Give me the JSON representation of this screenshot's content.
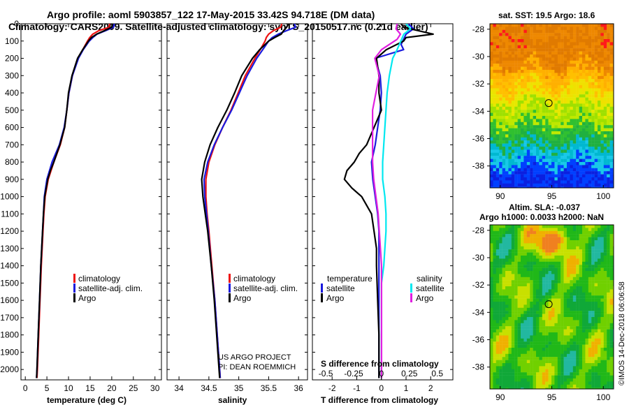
{
  "header": {
    "title_line1": "Argo profile: aoml 5903857_122 17-May-2015 33.42S 94.718E (DM data)",
    "title_line2": "Climatology: CARS2009. Satellite-adjusted climatology: synTS_20150517.nc (0.21d earlier)"
  },
  "credits": {
    "project": "US ARGO PROJECT",
    "pi": "PI: DEAN ROEMMICH",
    "imos": "©IMOS 14-Dec-2018 06:06:58"
  },
  "colors": {
    "climatology": "#ee1111",
    "satellite": "#1a1add",
    "argo": "#000000",
    "salinity_satellite": "#00e8f0",
    "salinity_argo": "#e020e0"
  },
  "chart_data": [
    {
      "id": "temperature",
      "type": "line",
      "xlabel": "temperature (deg C)",
      "xlim": [
        -1,
        31.5
      ],
      "xticks": [
        0,
        5,
        10,
        15,
        20,
        25,
        30
      ],
      "ylim": [
        2060,
        0
      ],
      "yticks": [
        0,
        100,
        200,
        300,
        400,
        500,
        600,
        700,
        800,
        900,
        1000,
        1100,
        1200,
        1300,
        1400,
        1500,
        1600,
        1700,
        1800,
        1900,
        2000
      ],
      "legend": [
        "climatology",
        "satellite-adj. clim.",
        "Argo"
      ],
      "series": [
        {
          "name": "climatology",
          "depth": [
            0,
            20,
            40,
            60,
            80,
            100,
            150,
            200,
            300,
            400,
            500,
            600,
            700,
            800,
            900,
            1000,
            1100,
            1200,
            1400,
            1600,
            1800,
            2000,
            2050
          ],
          "values": [
            19.5,
            19.4,
            17.0,
            15.6,
            14.9,
            14.4,
            13.3,
            12.2,
            10.9,
            10.1,
            9.6,
            9.1,
            8.1,
            6.6,
            5.3,
            4.6,
            4.3,
            4.1,
            3.7,
            3.4,
            3.1,
            2.8,
            2.7
          ]
        },
        {
          "name": "satellite-adj. clim.",
          "depth": [
            0,
            20,
            40,
            60,
            80,
            100,
            150,
            200,
            300,
            400,
            500,
            600,
            700,
            800,
            900,
            1000,
            1100,
            1200,
            1400,
            1600,
            1800,
            2000,
            2050
          ],
          "values": [
            20.6,
            20.4,
            18.6,
            16.6,
            15.6,
            14.8,
            13.4,
            12.3,
            10.9,
            10.1,
            9.6,
            9.0,
            7.9,
            6.2,
            5.0,
            4.4,
            4.2,
            4.0,
            3.6,
            3.3,
            3.0,
            2.7,
            2.6
          ]
        },
        {
          "name": "Argo",
          "depth": [
            0,
            20,
            40,
            60,
            80,
            100,
            150,
            200,
            300,
            400,
            500,
            600,
            700,
            800,
            850,
            900,
            1000,
            1100,
            1200,
            1400,
            1600,
            1800,
            2000,
            2050
          ],
          "values": [
            20.2,
            20.0,
            18.3,
            16.5,
            15.3,
            14.6,
            13.3,
            12.1,
            10.8,
            10.0,
            9.6,
            9.1,
            8.0,
            6.6,
            5.8,
            5.2,
            4.5,
            4.2,
            4.0,
            3.6,
            3.3,
            3.0,
            2.7,
            2.6
          ]
        }
      ]
    },
    {
      "id": "salinity",
      "type": "line",
      "xlabel": "salinity",
      "xlim": [
        33.8,
        36.15
      ],
      "xticks": [
        34,
        34.5,
        35,
        35.5,
        36
      ],
      "ylim": [
        2060,
        0
      ],
      "legend": [
        "climatology",
        "satellite-adj. clim.",
        "Argo"
      ],
      "series": [
        {
          "name": "climatology",
          "depth": [
            0,
            20,
            40,
            60,
            80,
            100,
            150,
            200,
            300,
            400,
            500,
            600,
            700,
            800,
            900,
            1000,
            1100,
            1200,
            1400,
            1600,
            1800,
            2000,
            2050
          ],
          "values": [
            35.72,
            35.7,
            35.58,
            35.5,
            35.46,
            35.44,
            35.36,
            35.27,
            35.11,
            34.99,
            34.87,
            34.73,
            34.6,
            34.5,
            34.45,
            34.45,
            34.47,
            34.5,
            34.55,
            34.6,
            34.64,
            34.68,
            34.69
          ]
        },
        {
          "name": "satellite-adj. clim.",
          "depth": [
            0,
            20,
            40,
            60,
            80,
            100,
            150,
            200,
            300,
            400,
            500,
            600,
            700,
            800,
            900,
            1000,
            1100,
            1200,
            1400,
            1600,
            1800,
            2000,
            2050
          ],
          "values": [
            35.93,
            35.95,
            35.8,
            35.66,
            35.56,
            35.5,
            35.4,
            35.3,
            35.14,
            35.01,
            34.88,
            34.73,
            34.59,
            34.48,
            34.42,
            34.43,
            34.46,
            34.49,
            34.54,
            34.6,
            34.64,
            34.68,
            34.69
          ]
        },
        {
          "name": "Argo",
          "depth": [
            0,
            20,
            40,
            60,
            80,
            100,
            150,
            200,
            300,
            400,
            500,
            600,
            700,
            800,
            900,
            1000,
            1100,
            1200,
            1400,
            1600,
            1800,
            2000,
            2050
          ],
          "values": [
            35.83,
            35.8,
            35.75,
            35.71,
            35.6,
            35.5,
            35.35,
            35.23,
            35.05,
            34.93,
            34.8,
            34.65,
            34.52,
            34.43,
            34.38,
            34.4,
            34.44,
            34.48,
            34.54,
            34.59,
            34.63,
            34.67,
            34.68
          ]
        }
      ]
    },
    {
      "id": "difference",
      "type": "line",
      "xlabel": "T difference from climatology",
      "xlabel_top": "S difference from climatology",
      "xlim": [
        -2.8,
        2.9
      ],
      "xticks": [
        -2,
        -1,
        0,
        1,
        2
      ],
      "top_xticks": [
        -0.5,
        -0.25,
        0,
        0.25,
        0.5
      ],
      "top_xtick_labels": [
        "-0.5",
        "-0.25",
        "0",
        "0.25",
        "0.5"
      ],
      "ylim": [
        2060,
        0
      ],
      "legend_temperature_title": "temperature",
      "legend_salinity_title": "salinity",
      "legend": [
        "satellite",
        "Argo",
        "satellite",
        "Argo"
      ],
      "series": [
        {
          "name": "temperature satellite",
          "depth": [
            0,
            30,
            60,
            90,
            120,
            150,
            200,
            250,
            300,
            400,
            500,
            600,
            700,
            800,
            900,
            1000,
            1100,
            1200,
            1300,
            1400,
            1600,
            1800,
            2000,
            2050
          ],
          "values": [
            1.1,
            1.3,
            1.0,
            0.9,
            0.8,
            0.9,
            -0.25,
            -0.15,
            -0.05,
            0.0,
            -0.05,
            -0.15,
            -0.25,
            -0.4,
            -0.35,
            -0.25,
            -0.15,
            -0.1,
            -0.1,
            -0.1,
            -0.1,
            -0.1,
            -0.1,
            -0.1
          ]
        },
        {
          "name": "temperature Argo",
          "depth": [
            0,
            20,
            40,
            60,
            80,
            100,
            150,
            200,
            300,
            400,
            500,
            600,
            700,
            750,
            800,
            850,
            900,
            950,
            1000,
            1100,
            1200,
            1300,
            1400,
            1600,
            1800,
            2000,
            2050
          ],
          "values": [
            0.8,
            0.9,
            1.5,
            2.1,
            1.0,
            0.9,
            0.2,
            -0.2,
            -0.1,
            -0.1,
            0.0,
            -0.3,
            -0.6,
            -0.9,
            -1.1,
            -1.4,
            -1.5,
            -1.2,
            -0.8,
            -0.4,
            -0.3,
            -0.2,
            -0.2,
            -0.15,
            -0.1,
            -0.1,
            -0.1
          ]
        },
        {
          "name": "salinity satellite",
          "depth": [
            0,
            30,
            60,
            90,
            150,
            200,
            300,
            400,
            500,
            600,
            700,
            800,
            900,
            1000,
            1100,
            1200,
            1300,
            1400,
            1500,
            1600,
            1800,
            2000,
            2050
          ],
          "values": [
            0.22,
            0.26,
            0.2,
            0.18,
            0.14,
            0.1,
            0.07,
            0.05,
            0.04,
            0.03,
            0.02,
            0.01,
            0.01,
            0.03,
            0.04,
            0.04,
            0.03,
            0.02,
            0.0,
            0.0,
            0.0,
            0.0,
            0.0
          ]
        },
        {
          "name": "salinity Argo",
          "depth": [
            0,
            30,
            60,
            90,
            150,
            200,
            300,
            400,
            500,
            600,
            700,
            800,
            900,
            1000,
            1100,
            1200,
            1300,
            1400,
            1500,
            1600,
            1800,
            2000,
            2050
          ],
          "values": [
            0.14,
            0.13,
            0.17,
            0.14,
            0.0,
            -0.06,
            -0.02,
            -0.05,
            -0.08,
            -0.08,
            -0.08,
            -0.08,
            -0.07,
            -0.05,
            -0.03,
            -0.02,
            -0.01,
            0.0,
            0.0,
            0.0,
            0.0,
            0.0,
            0.0
          ]
        }
      ]
    },
    {
      "id": "sst_map",
      "type": "heatmap",
      "title": "sat. SST: 19.5 Argo: 18.6",
      "xlim": [
        89,
        101
      ],
      "ylim": [
        -39.6,
        -27.6
      ],
      "xticks": [
        90,
        95,
        100
      ],
      "yticks": [
        -28,
        -30,
        -32,
        -34,
        -36,
        -38
      ],
      "marker": {
        "lon": 94.7,
        "lat": -33.4
      }
    },
    {
      "id": "sla_map",
      "type": "heatmap",
      "title": "Altim. SLA: -0.037",
      "subtitle": "Argo h1000: 0.0033 h2000: NaN",
      "xlim": [
        89,
        101
      ],
      "ylim": [
        -39.6,
        -27.6
      ],
      "xticks": [
        90,
        95,
        100
      ],
      "yticks": [
        -28,
        -30,
        -32,
        -34,
        -36,
        -38
      ],
      "marker": {
        "lon": 94.7,
        "lat": -33.4
      }
    }
  ]
}
